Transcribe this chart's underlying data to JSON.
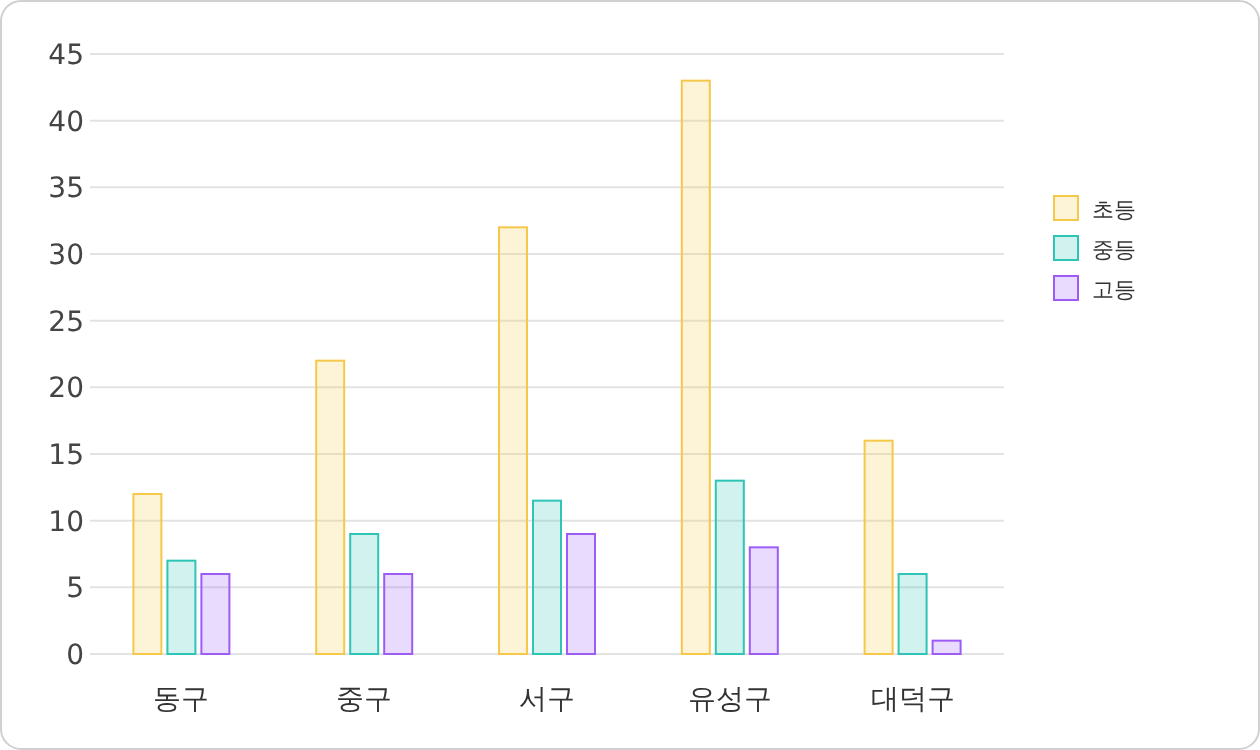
{
  "chart_data": {
    "type": "bar",
    "categories": [
      "동구",
      "중구",
      "서구",
      "유성구",
      "대덕구"
    ],
    "series": [
      {
        "name": "초등",
        "color": "#f5c84a",
        "values": [
          12,
          22,
          32,
          43,
          16
        ]
      },
      {
        "name": "중등",
        "color": "#2ec4b6",
        "values": [
          7,
          9,
          11.5,
          13,
          6
        ]
      },
      {
        "name": "고등",
        "color": "#9d5cf6",
        "values": [
          6,
          6,
          9,
          8,
          1
        ]
      }
    ],
    "ylim": [
      0,
      45
    ],
    "yticks": [
      0,
      5,
      10,
      15,
      20,
      25,
      30,
      35,
      40,
      45
    ],
    "grid": "y",
    "legend": "right"
  }
}
